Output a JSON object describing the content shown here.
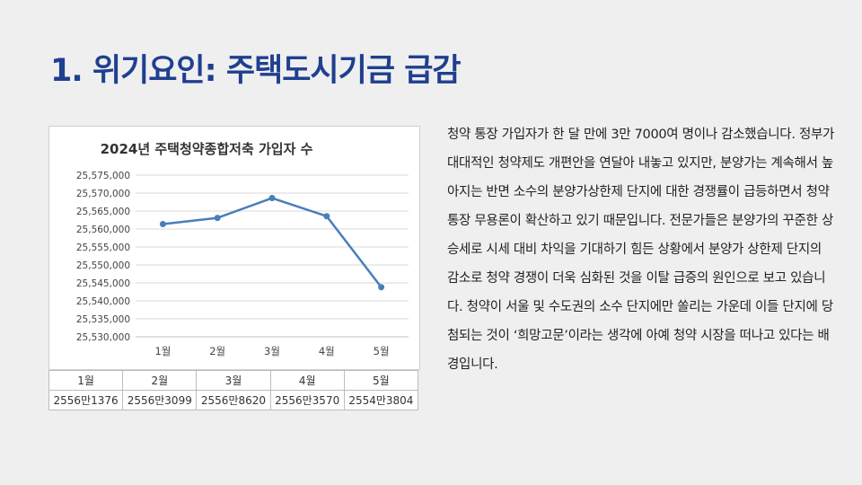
{
  "slide": {
    "title": "1. 위기요인: 주택도시기금 급감",
    "body": "청약 통장 가입자가 한 달 만에 3만 7000여 명이나 감소했습니다. 정부가 대대적인 청약제도 개편안을 연달아 내놓고 있지만, 분양가는 계속해서 높아지는 반면 소수의 분양가상한제 단지에 대한 경쟁률이 급등하면서 청약통장 무용론이 확산하고 있기 때문입니다. 전문가들은 분양가의 꾸준한 상승세로 시세 대비 차익을 기대하기 힘든 상황에서 분양가 상한제 단지의 감소로 청약 경쟁이 더욱 심화된 것을 이탈 급증의 원인으로 보고 있습니다. 청약이 서울 및 수도권의 소수 단지에만 쏠리는 가운데 이들 단지에 당첨되는 것이 ‘희망고문’이라는 생각에 아예 청약 시장을 떠나고 있다는 배경입니다."
  },
  "chart_data": {
    "type": "line",
    "title": "2024년 주택청약종합저축 가입자 수",
    "categories": [
      "1월",
      "2월",
      "3월",
      "4월",
      "5월"
    ],
    "series": [
      {
        "values": [
          25561376,
          25563099,
          25568620,
          25563570,
          25543804
        ]
      }
    ],
    "ylim": [
      25530000,
      25575000
    ],
    "yticks": [
      "25,530,000",
      "25,535,000",
      "25,540,000",
      "25,545,000",
      "25,550,000",
      "25,555,000",
      "25,560,000",
      "25,565,000",
      "25,570,000",
      "25,575,000"
    ],
    "grid": true,
    "table": {
      "headers": [
        "1월",
        "2월",
        "3월",
        "4월",
        "5월"
      ],
      "values": [
        "2556만1376",
        "2556만3099",
        "2556만8620",
        "2556만3570",
        "2554만3804"
      ]
    }
  },
  "colors": {
    "title": "#1f3f8f",
    "line": "#4a7ebb",
    "grid": "#d9d9d9"
  }
}
